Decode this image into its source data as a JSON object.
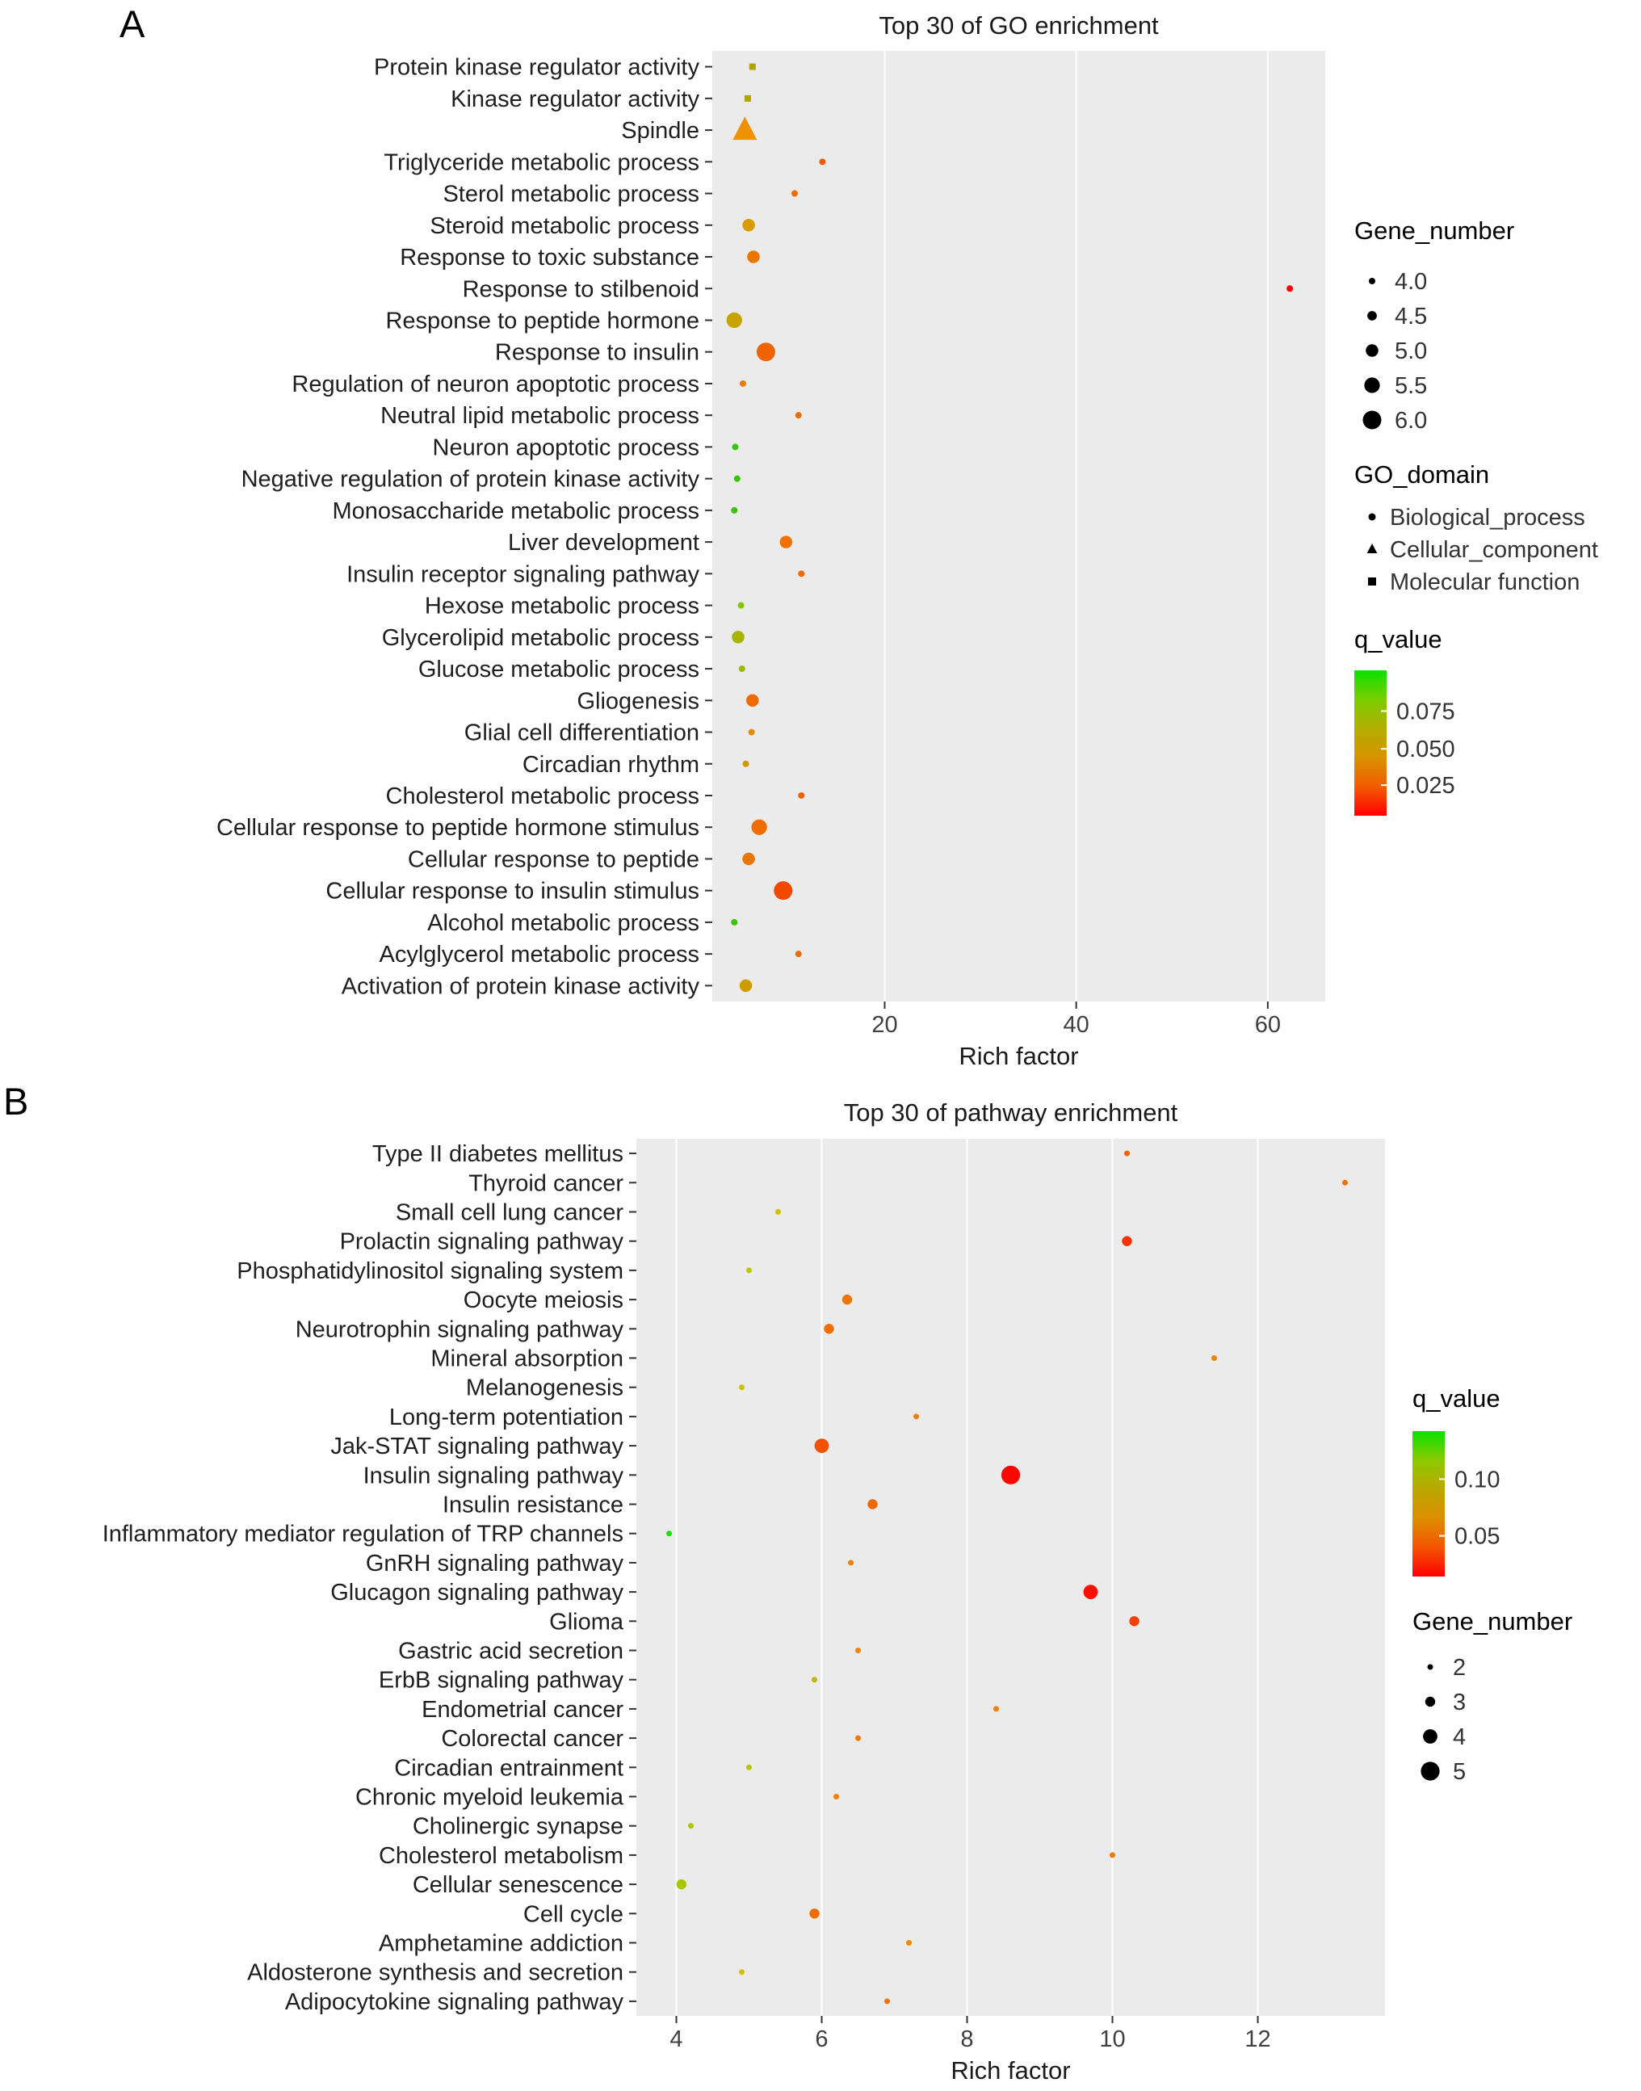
{
  "figure": {
    "background": "#ffffff"
  },
  "chart_data": [
    {
      "type": "scatter",
      "panel_label": "A",
      "title": "Top 30 of GO enrichment",
      "xlabel": "Rich factor",
      "ylabel": "",
      "xlim": [
        2,
        66
      ],
      "legend_position": "right",
      "panel_background": "#ebebeb",
      "grid": "major-x-white",
      "xticks": [
        {
          "value": 20,
          "label": "20"
        },
        {
          "value": 40,
          "label": "40"
        },
        {
          "value": 60,
          "label": "60"
        }
      ],
      "categories": [
        "Protein kinase regulator activity",
        "Kinase regulator activity",
        "Spindle",
        "Triglyceride metabolic process",
        "Sterol metabolic process",
        "Steroid metabolic process",
        "Response to toxic substance",
        "Response to stilbenoid",
        "Response to peptide hormone",
        "Response to insulin",
        "Regulation of neuron apoptotic process",
        "Neutral lipid metabolic process",
        "Neuron apoptotic process",
        "Negative regulation of protein kinase activity",
        "Monosaccharide metabolic process",
        "Liver development",
        "Insulin receptor signaling pathway",
        "Hexose metabolic process",
        "Glycerolipid metabolic process",
        "Glucose metabolic process",
        "Gliogenesis",
        "Glial cell differentiation",
        "Circadian rhythm",
        "Cholesterol metabolic process",
        "Cellular response to peptide hormone stimulus",
        "Cellular response to peptide",
        "Cellular response to insulin stimulus",
        "Alcohol metabolic process",
        "Acylglycerol metabolic process",
        "Activation of protein kinase activity"
      ],
      "points": [
        {
          "x": 6.2,
          "gene_number": 4,
          "color": "#b2a400",
          "shape": "square"
        },
        {
          "x": 5.7,
          "gene_number": 4,
          "color": "#b2a400",
          "shape": "square"
        },
        {
          "x": 5.4,
          "gene_number": 6,
          "color": "#ef9100",
          "shape": "triangle"
        },
        {
          "x": 13.5,
          "gene_number": 4,
          "color": "#f25c00",
          "shape": "circle"
        },
        {
          "x": 10.6,
          "gene_number": 4,
          "color": "#f06a00",
          "shape": "circle"
        },
        {
          "x": 5.8,
          "gene_number": 5,
          "color": "#d89b00",
          "shape": "circle"
        },
        {
          "x": 6.3,
          "gene_number": 5,
          "color": "#ec7500",
          "shape": "circle"
        },
        {
          "x": 62.3,
          "gene_number": 4,
          "color": "#ff0000",
          "shape": "circle"
        },
        {
          "x": 4.3,
          "gene_number": 5.5,
          "color": "#c7a300",
          "shape": "circle"
        },
        {
          "x": 7.6,
          "gene_number": 6,
          "color": "#f06400",
          "shape": "circle"
        },
        {
          "x": 5.2,
          "gene_number": 4,
          "color": "#e87d00",
          "shape": "circle"
        },
        {
          "x": 11.0,
          "gene_number": 4,
          "color": "#f06a00",
          "shape": "circle"
        },
        {
          "x": 4.4,
          "gene_number": 4,
          "color": "#38c400",
          "shape": "circle"
        },
        {
          "x": 4.6,
          "gene_number": 4,
          "color": "#38c400",
          "shape": "circle"
        },
        {
          "x": 4.3,
          "gene_number": 4,
          "color": "#38c400",
          "shape": "circle"
        },
        {
          "x": 9.7,
          "gene_number": 5,
          "color": "#f07000",
          "shape": "circle"
        },
        {
          "x": 11.3,
          "gene_number": 4,
          "color": "#f06a00",
          "shape": "circle"
        },
        {
          "x": 5.0,
          "gene_number": 4,
          "color": "#86c400",
          "shape": "circle"
        },
        {
          "x": 4.7,
          "gene_number": 5,
          "color": "#a6b400",
          "shape": "circle"
        },
        {
          "x": 5.1,
          "gene_number": 4,
          "color": "#9cb800",
          "shape": "circle"
        },
        {
          "x": 6.2,
          "gene_number": 5,
          "color": "#ee6b00",
          "shape": "circle"
        },
        {
          "x": 6.1,
          "gene_number": 4,
          "color": "#e28900",
          "shape": "circle"
        },
        {
          "x": 5.5,
          "gene_number": 4,
          "color": "#d19700",
          "shape": "circle"
        },
        {
          "x": 11.3,
          "gene_number": 4,
          "color": "#f06000",
          "shape": "circle"
        },
        {
          "x": 6.9,
          "gene_number": 5.5,
          "color": "#ee6c00",
          "shape": "circle"
        },
        {
          "x": 5.8,
          "gene_number": 5,
          "color": "#e87600",
          "shape": "circle"
        },
        {
          "x": 9.4,
          "gene_number": 6,
          "color": "#f24900",
          "shape": "circle"
        },
        {
          "x": 4.3,
          "gene_number": 4,
          "color": "#38c400",
          "shape": "circle"
        },
        {
          "x": 11.0,
          "gene_number": 4,
          "color": "#f06a00",
          "shape": "circle"
        },
        {
          "x": 5.5,
          "gene_number": 5,
          "color": "#cf9c00",
          "shape": "circle"
        }
      ],
      "legend": {
        "gene_number": {
          "title": "Gene_number",
          "items": [
            {
              "value": 4,
              "label": "4.0"
            },
            {
              "value": 4.5,
              "label": "4.5"
            },
            {
              "value": 5,
              "label": "5.0"
            },
            {
              "value": 5.5,
              "label": "5.5"
            },
            {
              "value": 6,
              "label": "6.0"
            }
          ]
        },
        "go_domain": {
          "title": "GO_domain",
          "items": [
            {
              "label": "Biological_process",
              "shape": "circle"
            },
            {
              "label": "Cellular_component",
              "shape": "triangle"
            },
            {
              "label": "Molecular function",
              "shape": "square"
            }
          ]
        },
        "q_value": {
          "title": "q_value",
          "labels": [
            {
              "text": "0.075",
              "pos": 0.28
            },
            {
              "text": "0.050",
              "pos": 0.54
            },
            {
              "text": "0.025",
              "pos": 0.79
            }
          ],
          "gradient": [
            "#0ae000",
            "#7ccd00",
            "#b3ae00",
            "#d89300",
            "#f25c00",
            "#ff0000"
          ]
        }
      }
    },
    {
      "type": "scatter",
      "panel_label": "B",
      "title": "Top 30 of pathway enrichment",
      "xlabel": "Rich factor",
      "ylabel": "",
      "xlim": [
        3.45,
        13.75
      ],
      "legend_position": "right",
      "panel_background": "#ebebeb",
      "grid": "major-x-white",
      "xticks": [
        {
          "value": 4,
          "label": "4"
        },
        {
          "value": 6,
          "label": "6"
        },
        {
          "value": 8,
          "label": "8"
        },
        {
          "value": 10,
          "label": "10"
        },
        {
          "value": 12,
          "label": "12"
        }
      ],
      "categories": [
        "Type II diabetes mellitus",
        "Thyroid cancer",
        "Small cell lung cancer",
        "Prolactin signaling pathway",
        "Phosphatidylinositol signaling system",
        "Oocyte meiosis",
        "Neurotrophin signaling pathway",
        "Mineral absorption",
        "Melanogenesis",
        "Long-term potentiation",
        "Jak-STAT signaling pathway",
        "Insulin signaling pathway",
        "Insulin resistance",
        "Inflammatory mediator regulation of TRP channels",
        "GnRH signaling pathway",
        "Glucagon signaling pathway",
        "Glioma",
        "Gastric acid secretion",
        "ErbB signaling pathway",
        "Endometrial cancer",
        "Colorectal cancer",
        "Circadian entrainment",
        "Chronic myeloid leukemia",
        "Cholinergic synapse",
        "Cholesterol metabolism",
        "Cellular senescence",
        "Cell cycle",
        "Amphetamine addiction",
        "Aldosterone synthesis and secretion",
        "Adipocytokine signaling pathway"
      ],
      "points": [
        {
          "x": 10.2,
          "gene_number": 2,
          "color": "#f06300",
          "shape": "circle"
        },
        {
          "x": 13.2,
          "gene_number": 2,
          "color": "#f07000",
          "shape": "circle"
        },
        {
          "x": 5.4,
          "gene_number": 2,
          "color": "#cfc100",
          "shape": "circle"
        },
        {
          "x": 10.2,
          "gene_number": 3,
          "color": "#f53200",
          "shape": "circle"
        },
        {
          "x": 5.0,
          "gene_number": 2,
          "color": "#b9c800",
          "shape": "circle"
        },
        {
          "x": 6.35,
          "gene_number": 3,
          "color": "#f07400",
          "shape": "circle"
        },
        {
          "x": 6.1,
          "gene_number": 3,
          "color": "#f06d00",
          "shape": "circle"
        },
        {
          "x": 11.4,
          "gene_number": 2,
          "color": "#f08000",
          "shape": "circle"
        },
        {
          "x": 4.9,
          "gene_number": 2,
          "color": "#d1c000",
          "shape": "circle"
        },
        {
          "x": 7.3,
          "gene_number": 2,
          "color": "#f08100",
          "shape": "circle"
        },
        {
          "x": 6.0,
          "gene_number": 4,
          "color": "#f25100",
          "shape": "circle"
        },
        {
          "x": 8.6,
          "gene_number": 5,
          "color": "#fb0600",
          "shape": "circle"
        },
        {
          "x": 6.7,
          "gene_number": 3,
          "color": "#f06900",
          "shape": "circle"
        },
        {
          "x": 3.9,
          "gene_number": 2,
          "color": "#12e400",
          "shape": "circle"
        },
        {
          "x": 6.4,
          "gene_number": 2,
          "color": "#f08100",
          "shape": "circle"
        },
        {
          "x": 9.7,
          "gene_number": 4,
          "color": "#fb1000",
          "shape": "circle"
        },
        {
          "x": 10.3,
          "gene_number": 3,
          "color": "#f34100",
          "shape": "circle"
        },
        {
          "x": 6.5,
          "gene_number": 2,
          "color": "#f08500",
          "shape": "circle"
        },
        {
          "x": 5.9,
          "gene_number": 2,
          "color": "#c1b400",
          "shape": "circle"
        },
        {
          "x": 8.4,
          "gene_number": 2,
          "color": "#f08100",
          "shape": "circle"
        },
        {
          "x": 6.5,
          "gene_number": 2,
          "color": "#f07900",
          "shape": "circle"
        },
        {
          "x": 5.0,
          "gene_number": 2,
          "color": "#b7c400",
          "shape": "circle"
        },
        {
          "x": 6.2,
          "gene_number": 2,
          "color": "#f08100",
          "shape": "circle"
        },
        {
          "x": 4.2,
          "gene_number": 2,
          "color": "#abc600",
          "shape": "circle"
        },
        {
          "x": 10.0,
          "gene_number": 2,
          "color": "#f07900",
          "shape": "circle"
        },
        {
          "x": 4.07,
          "gene_number": 3,
          "color": "#a9c400",
          "shape": "circle"
        },
        {
          "x": 5.9,
          "gene_number": 3,
          "color": "#ee6d00",
          "shape": "circle"
        },
        {
          "x": 7.2,
          "gene_number": 2,
          "color": "#f08500",
          "shape": "circle"
        },
        {
          "x": 4.9,
          "gene_number": 2,
          "color": "#d3c000",
          "shape": "circle"
        },
        {
          "x": 6.9,
          "gene_number": 2,
          "color": "#ef7500",
          "shape": "circle"
        }
      ],
      "legend": {
        "q_value": {
          "title": "q_value",
          "labels": [
            {
              "text": "0.10",
              "pos": 0.33
            },
            {
              "text": "0.05",
              "pos": 0.72
            }
          ],
          "gradient": [
            "#0ae000",
            "#8cc900",
            "#bba800",
            "#dc8e00",
            "#f45400",
            "#ff0000"
          ]
        },
        "gene_number": {
          "title": "Gene_number",
          "items": [
            {
              "value": 2,
              "label": "2"
            },
            {
              "value": 3,
              "label": "3"
            },
            {
              "value": 4,
              "label": "4"
            },
            {
              "value": 5,
              "label": "5"
            }
          ]
        }
      }
    }
  ]
}
